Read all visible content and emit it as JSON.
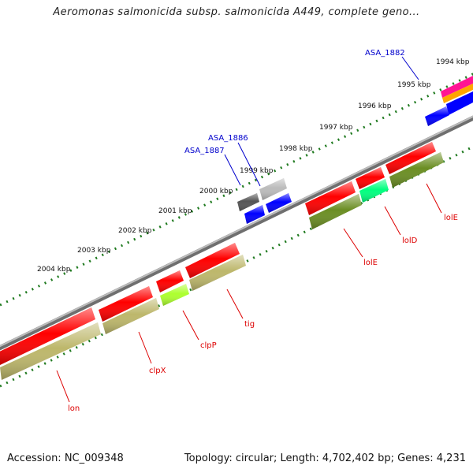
{
  "title": "Aeromonas salmonicida subsp. salmonicida A449, complete geno...",
  "footer": {
    "accession": "Accession: NC_009348",
    "summary": "Topology: circular; Length: 4,702,402 bp; Genes: 4,231"
  },
  "colors": {
    "backbone": "#8c8c8c",
    "scale_dots": "#1f7a1f",
    "gene_label": "#dd0000",
    "locus_label": "#0000cc",
    "red": "#ff0000",
    "blue": "#0000ff",
    "olive": "#6b8e23",
    "khaki": "#bdb76b",
    "green_yellow": "#adff2f",
    "spring_green": "#00ff7f",
    "dark_grey": "#555555",
    "light_grey": "#bbbbbb",
    "magenta": "#ff1493",
    "orange": "#ffa500"
  },
  "scale_labels": [
    "1994 kbp",
    "1995 kbp",
    "1996 kbp",
    "1997 kbp",
    "1998 kbp",
    "1999 kbp",
    "2000 kbp",
    "2001 kbp",
    "2002 kbp",
    "2003 kbp",
    "2004 kbp"
  ],
  "gene_labels": [
    "lolE",
    "lolD",
    "lolE",
    "tig",
    "clpP",
    "clpX",
    "lon"
  ],
  "locus_labels": [
    "ASA_1882",
    "ASA_1886",
    "ASA_1887"
  ]
}
